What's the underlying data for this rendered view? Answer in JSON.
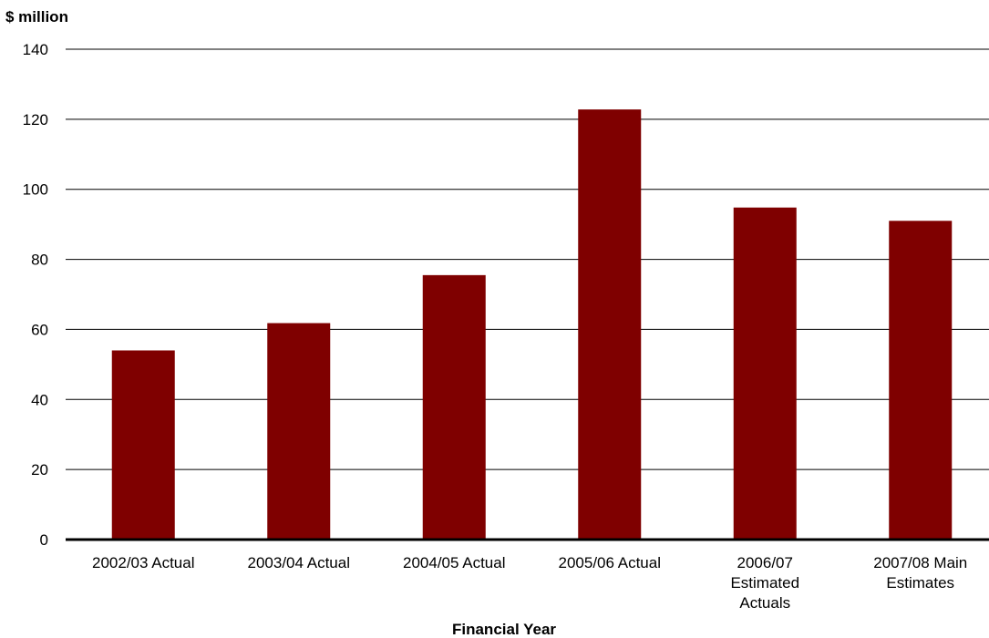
{
  "chart_data": {
    "type": "bar",
    "title": "",
    "ylabel": "$ million",
    "xlabel": "Financial Year",
    "ylim": [
      0,
      140
    ],
    "yticks": [
      0,
      20,
      40,
      60,
      80,
      100,
      120,
      140
    ],
    "grid": true,
    "legend": "none",
    "categories": [
      "2002/03 Actual",
      "2003/04 Actual",
      "2004/05 Actual",
      "2005/06 Actual",
      "2006/07 Estimated Actuals",
      "2007/08 Main Estimates"
    ],
    "category_lines": [
      [
        "2002/03 Actual"
      ],
      [
        "2003/04 Actual"
      ],
      [
        "2004/05 Actual"
      ],
      [
        "2005/06 Actual"
      ],
      [
        "2006/07",
        "Estimated",
        "Actuals"
      ],
      [
        "2007/08 Main",
        "Estimates"
      ]
    ],
    "values": [
      54,
      61.8,
      75.5,
      122.8,
      94.8,
      91
    ],
    "colors": {
      "bar": "#7f0000",
      "grid": "#000000",
      "axis": "#000000"
    }
  }
}
